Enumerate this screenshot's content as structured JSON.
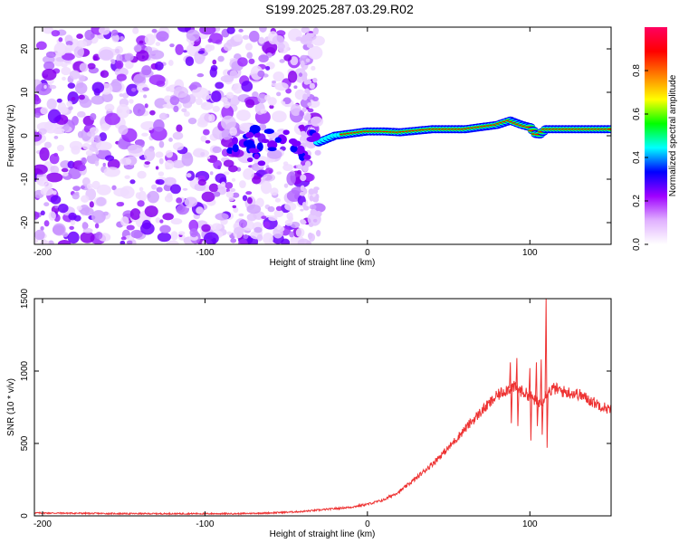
{
  "title": "S199.2025.287.03.29.R02",
  "chart_data": [
    {
      "type": "heatmap",
      "xlabel": "Height of straight line (km)",
      "ylabel": "Frequency (Hz)",
      "xlim": [
        -205,
        150
      ],
      "ylim": [
        -25,
        25
      ],
      "xticks": [
        -200,
        -100,
        0,
        100
      ],
      "yticks": [
        -20,
        -10,
        0,
        10,
        20
      ],
      "colorbar": {
        "label": "Normalized spectral amplitude",
        "range": [
          0,
          1
        ],
        "ticks": [
          "0.0",
          "0.2",
          "0.4",
          "0.6",
          "0.8"
        ],
        "colors": [
          "#ffffff",
          "#e0b0ff",
          "#9f00ff",
          "#0000ff",
          "#00ffff",
          "#00ff00",
          "#ffff00",
          "#ff8000",
          "#ff0000",
          "#ff0060"
        ]
      },
      "ridge": {
        "description_points_x": [
          -80,
          -60,
          -40,
          -30,
          -20,
          -10,
          0,
          10,
          20,
          40,
          60,
          80,
          88,
          95,
          100,
          105,
          110,
          150
        ],
        "description_points_y": [
          -2,
          -2.5,
          -3,
          -1.5,
          0,
          0.5,
          1,
          1,
          0.8,
          1.5,
          1.5,
          2.5,
          3.5,
          2.5,
          2,
          0,
          1.5,
          1.5
        ]
      }
    },
    {
      "type": "line",
      "xlabel": "Height of straight line (km)",
      "ylabel": "SNR (10 * v/v)",
      "xlim": [
        -205,
        150
      ],
      "ylim": [
        0,
        1500
      ],
      "xticks": [
        -200,
        -100,
        0,
        100
      ],
      "yticks": [
        0,
        500,
        1000,
        1500
      ],
      "color": "#ee3333",
      "x": [
        -205,
        -180,
        -150,
        -120,
        -100,
        -80,
        -60,
        -40,
        -30,
        -20,
        -10,
        0,
        10,
        20,
        30,
        40,
        50,
        60,
        70,
        80,
        85,
        90,
        95,
        100,
        105,
        108,
        110,
        112,
        115,
        120,
        130,
        140,
        150
      ],
      "y": [
        20,
        18,
        15,
        15,
        15,
        15,
        20,
        30,
        40,
        50,
        60,
        80,
        110,
        170,
        260,
        360,
        470,
        600,
        720,
        830,
        870,
        890,
        860,
        830,
        780,
        800,
        850,
        860,
        880,
        860,
        840,
        780,
        730
      ],
      "spikes": [
        {
          "x": 88,
          "y": 1060,
          "low": 640
        },
        {
          "x": 92,
          "y": 1090,
          "low": 620
        },
        {
          "x": 100,
          "y": 1020,
          "low": 520
        },
        {
          "x": 104,
          "y": 1060,
          "low": 620
        },
        {
          "x": 107,
          "y": 1080,
          "low": 560
        },
        {
          "x": 110,
          "y": 1500,
          "low": 470
        }
      ]
    }
  ]
}
